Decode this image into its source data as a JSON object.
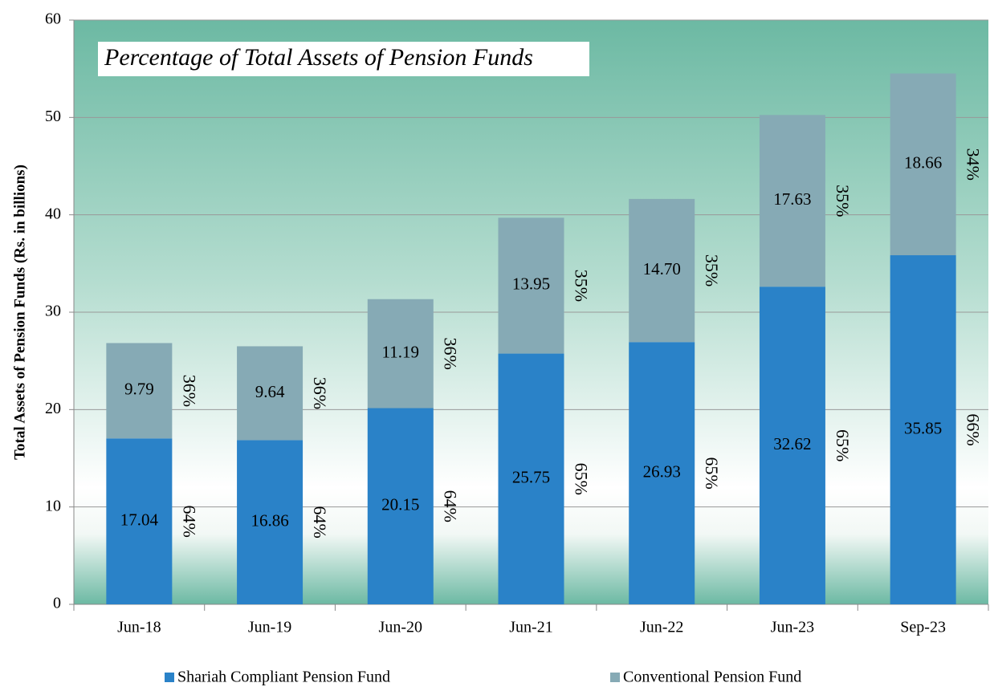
{
  "chart_data": {
    "type": "stacked_bar",
    "title": "Percentage of Total Assets of Pension Funds",
    "y_label": "Total Assets  of Pension Funds (Rs. in billions)",
    "categories": [
      "Jun-18",
      "Jun-19",
      "Jun-20",
      "Jun-21",
      "Jun-22",
      "Jun-23",
      "Sep-23"
    ],
    "series": [
      {
        "name": "Shariah Compliant Pension Fund",
        "color": "#2a82c8",
        "values": [
          17.04,
          16.86,
          20.15,
          25.75,
          26.93,
          32.62,
          35.85
        ],
        "value_labels": [
          "17.04",
          "16.86",
          "20.15",
          "25.75",
          "26.93",
          "32.62",
          "35.85"
        ],
        "share_labels": [
          "64%",
          "64%",
          "64%",
          "65%",
          "65%",
          "65%",
          "66%"
        ]
      },
      {
        "name": "Conventional Pension Fund",
        "color": "#86aab5",
        "values": [
          9.79,
          9.64,
          11.19,
          13.95,
          14.7,
          17.63,
          18.66
        ],
        "value_labels": [
          "9.79",
          "9.64",
          "11.19",
          "13.95",
          "14.70",
          "17.63",
          "18.66"
        ],
        "share_labels": [
          "36%",
          "36%",
          "36%",
          "35%",
          "35%",
          "35%",
          "34%"
        ]
      }
    ],
    "ylim": [
      0,
      60
    ],
    "yticks": [
      0,
      10,
      20,
      30,
      40,
      50,
      60
    ],
    "grid": true
  }
}
